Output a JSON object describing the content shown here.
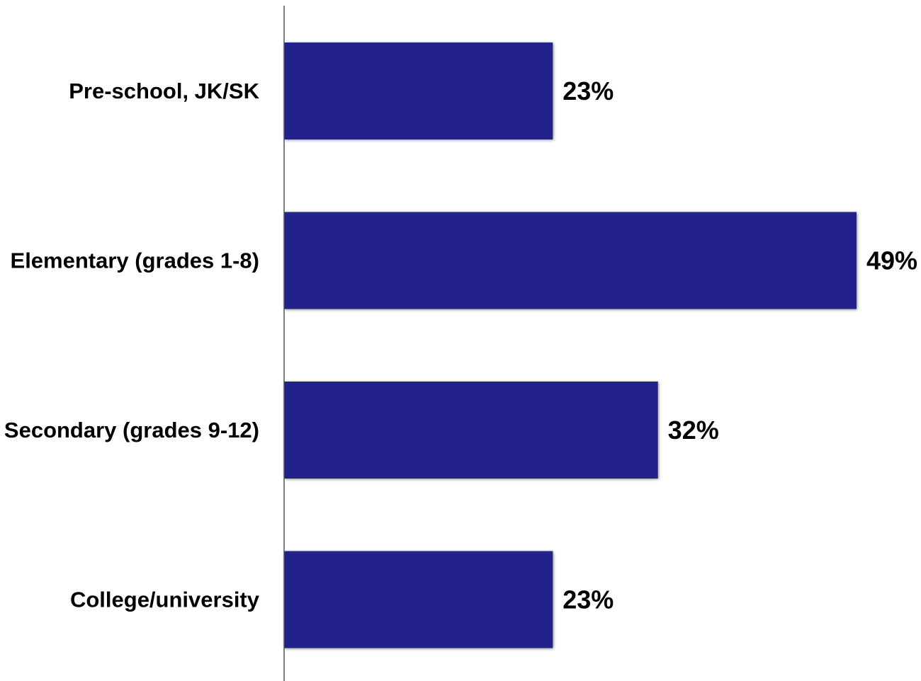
{
  "chart_data": {
    "type": "bar",
    "orientation": "horizontal",
    "categories": [
      "Pre-school, JK/SK",
      "Elementary (grades 1-8)",
      "Secondary (grades 9-12)",
      "College/university"
    ],
    "values": [
      23,
      49,
      32,
      23
    ],
    "value_labels": [
      "23%",
      "49%",
      "32%",
      "23%"
    ],
    "unit": "%",
    "xlim": [
      0,
      50
    ],
    "grid": false,
    "legend": "none",
    "title": "",
    "xlabel": "",
    "ylabel": ""
  },
  "colors": {
    "bar": "#22208a",
    "axis": "#555555",
    "text": "#000000",
    "background": "#ffffff"
  }
}
